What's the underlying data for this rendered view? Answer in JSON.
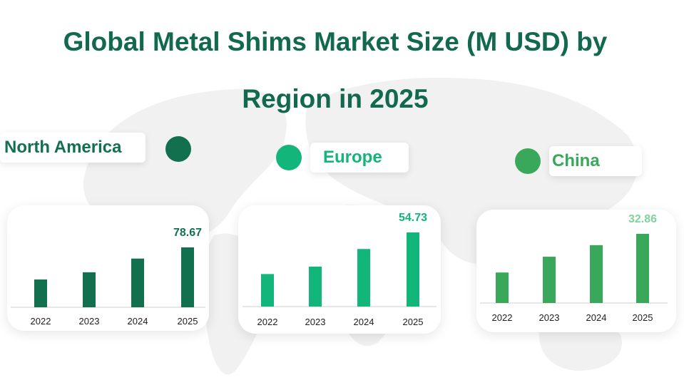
{
  "title": {
    "line1": "Global Metal Shims Market Size (M USD) by",
    "line2": "Region in 2025"
  },
  "colors": {
    "title": "#12694f",
    "north_america": "#12704f",
    "europe": "#12b57a",
    "china": "#39a85a",
    "china_value": "#7ed49a"
  },
  "chart_data": [
    {
      "type": "bar",
      "title": "North America",
      "categories": [
        "2022",
        "2023",
        "2024",
        "2025"
      ],
      "values": [
        36.5,
        46.0,
        64.0,
        78.67
      ],
      "value_label": "78.67"
    },
    {
      "type": "bar",
      "title": "Europe",
      "categories": [
        "2022",
        "2023",
        "2024",
        "2025"
      ],
      "values": [
        24.0,
        29.5,
        42.5,
        54.73
      ],
      "value_label": "54.73"
    },
    {
      "type": "bar",
      "title": "China",
      "categories": [
        "2022",
        "2023",
        "2024",
        "2025"
      ],
      "values": [
        14.5,
        22.0,
        27.5,
        32.86
      ],
      "value_label": "32.86"
    }
  ]
}
